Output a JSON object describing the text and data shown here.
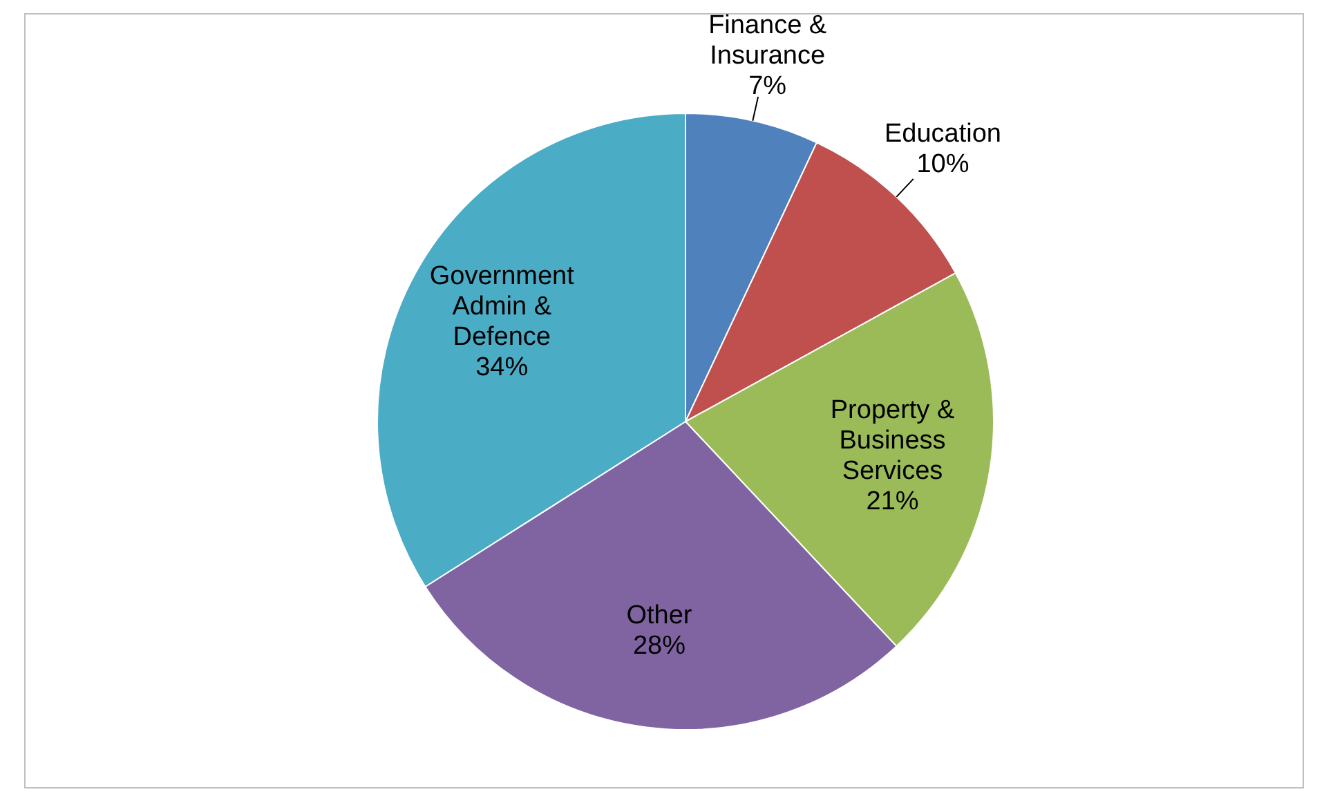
{
  "chart_data": {
    "type": "pie",
    "categories": [
      "Finance & Insurance",
      "Education",
      "Property & Business Services",
      "Other",
      "Government Admin & Defence"
    ],
    "values": [
      7,
      10,
      21,
      28,
      34
    ],
    "colors": [
      "#4f81bd",
      "#c0504d",
      "#9bbb59",
      "#8064a2",
      "#4bacc6"
    ],
    "value_labels": [
      "7%",
      "10%",
      "21%",
      "28%",
      "34%"
    ]
  }
}
